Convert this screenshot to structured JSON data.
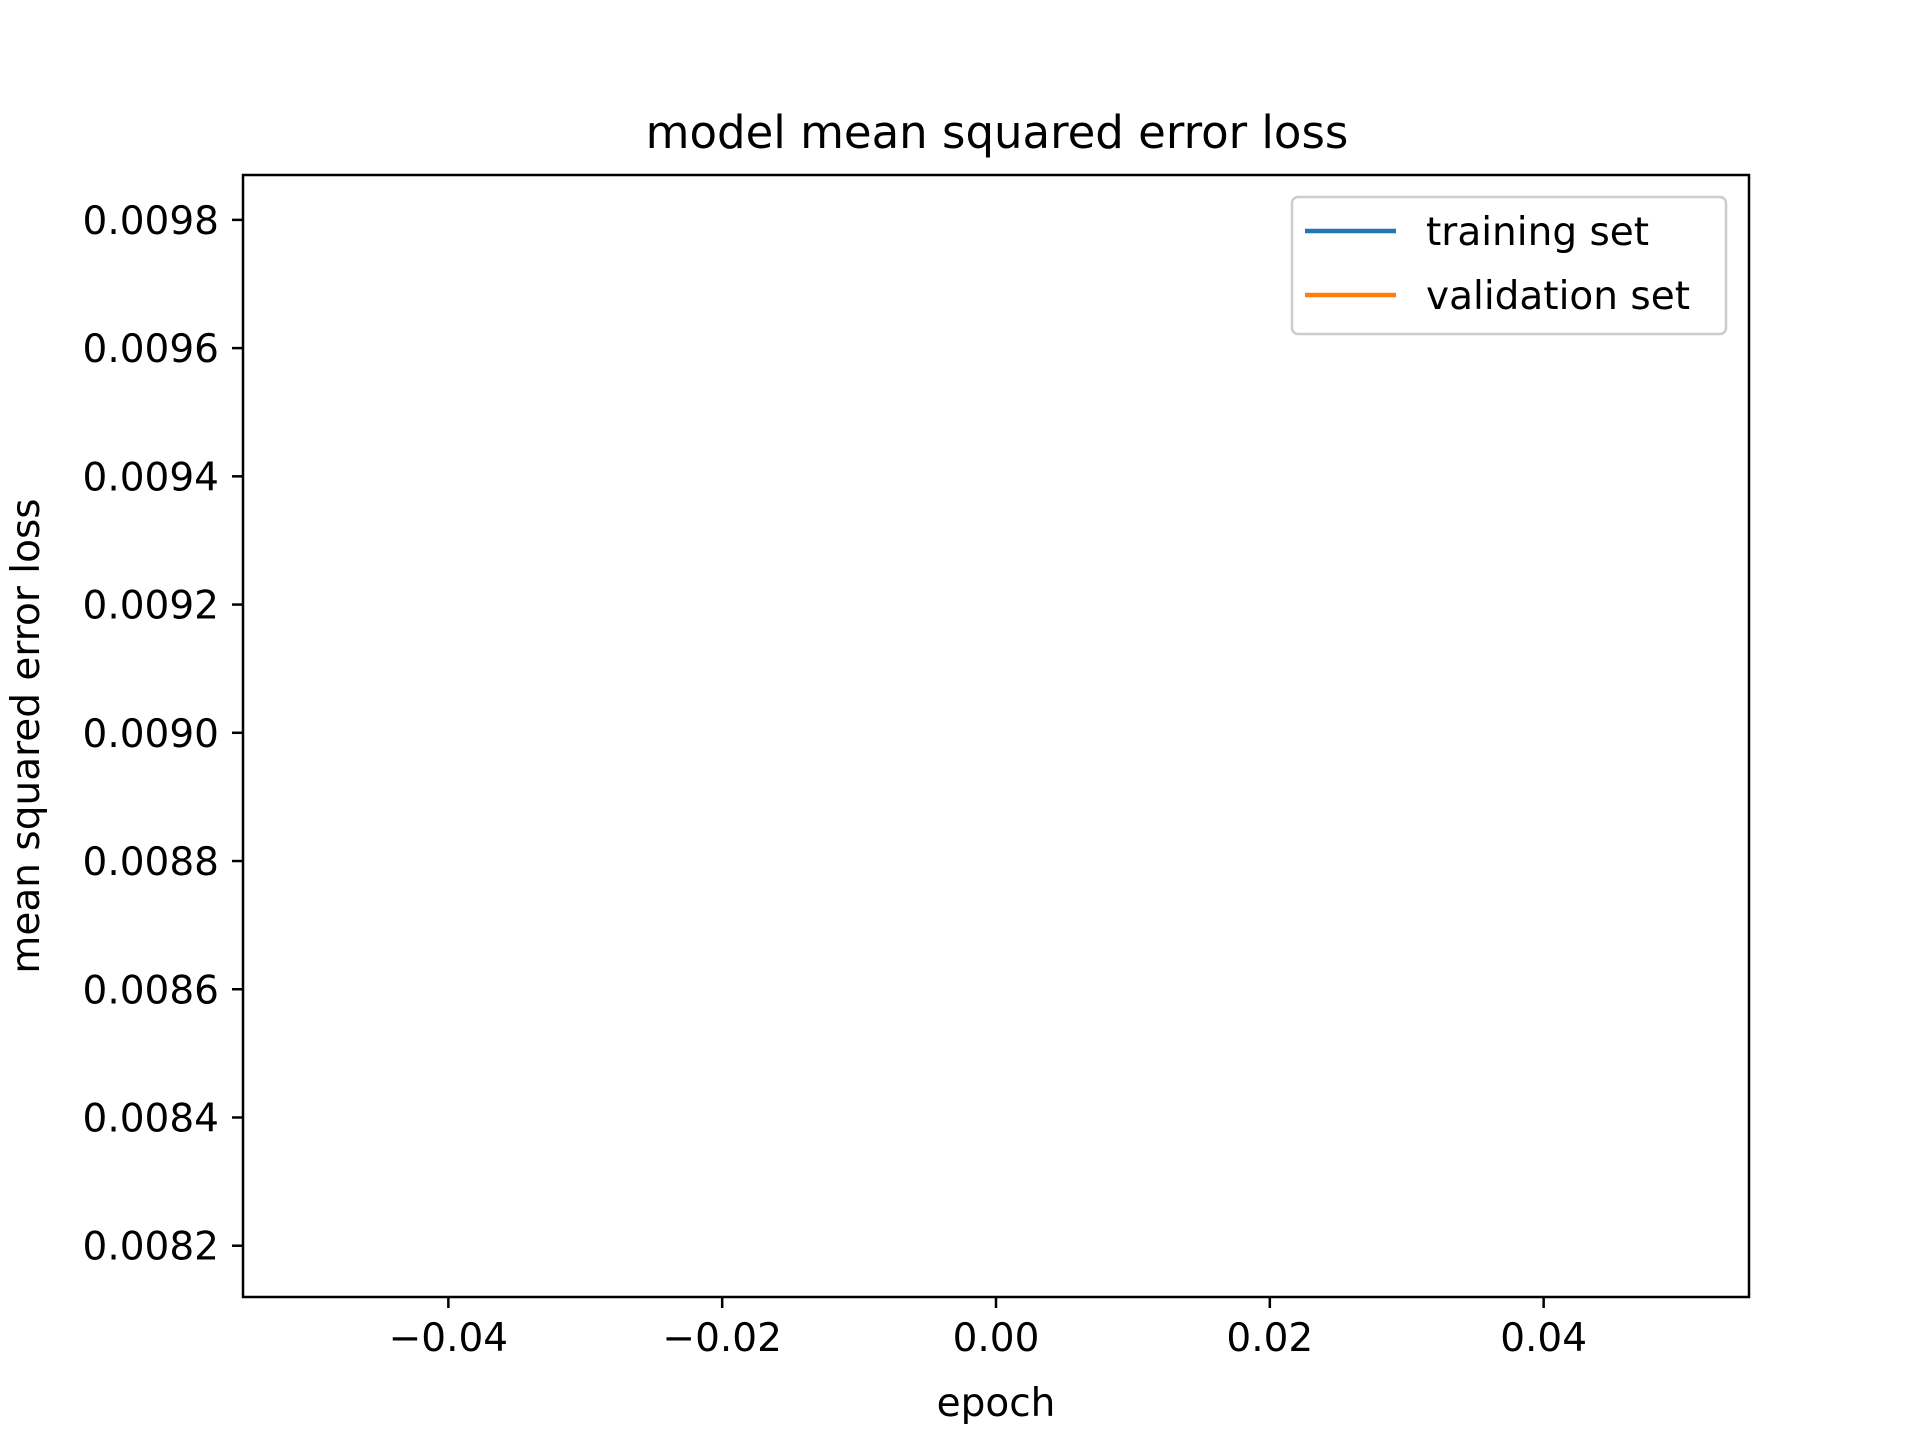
{
  "chart_data": {
    "type": "line",
    "title": "model mean squared error loss",
    "xlabel": "epoch",
    "ylabel": "mean squared error loss",
    "xlim": [
      -0.055,
      0.055
    ],
    "ylim": [
      0.00812,
      0.00987
    ],
    "x_ticks": [
      {
        "value": -0.04,
        "label": "−0.04"
      },
      {
        "value": -0.02,
        "label": "−0.02"
      },
      {
        "value": 0.0,
        "label": "0.00"
      },
      {
        "value": 0.02,
        "label": "0.02"
      },
      {
        "value": 0.04,
        "label": "0.04"
      }
    ],
    "y_ticks": [
      {
        "value": 0.0082,
        "label": "0.0082"
      },
      {
        "value": 0.0084,
        "label": "0.0084"
      },
      {
        "value": 0.0086,
        "label": "0.0086"
      },
      {
        "value": 0.0088,
        "label": "0.0088"
      },
      {
        "value": 0.009,
        "label": "0.0090"
      },
      {
        "value": 0.0092,
        "label": "0.0092"
      },
      {
        "value": 0.0094,
        "label": "0.0094"
      },
      {
        "value": 0.0096,
        "label": "0.0096"
      },
      {
        "value": 0.0098,
        "label": "0.0098"
      }
    ],
    "grid": false,
    "legend": "top-right",
    "series": [
      {
        "name": "training set",
        "color": "#1f77b4",
        "x": [],
        "y": []
      },
      {
        "name": "validation set",
        "color": "#ff7f0e",
        "x": [],
        "y": []
      }
    ]
  }
}
